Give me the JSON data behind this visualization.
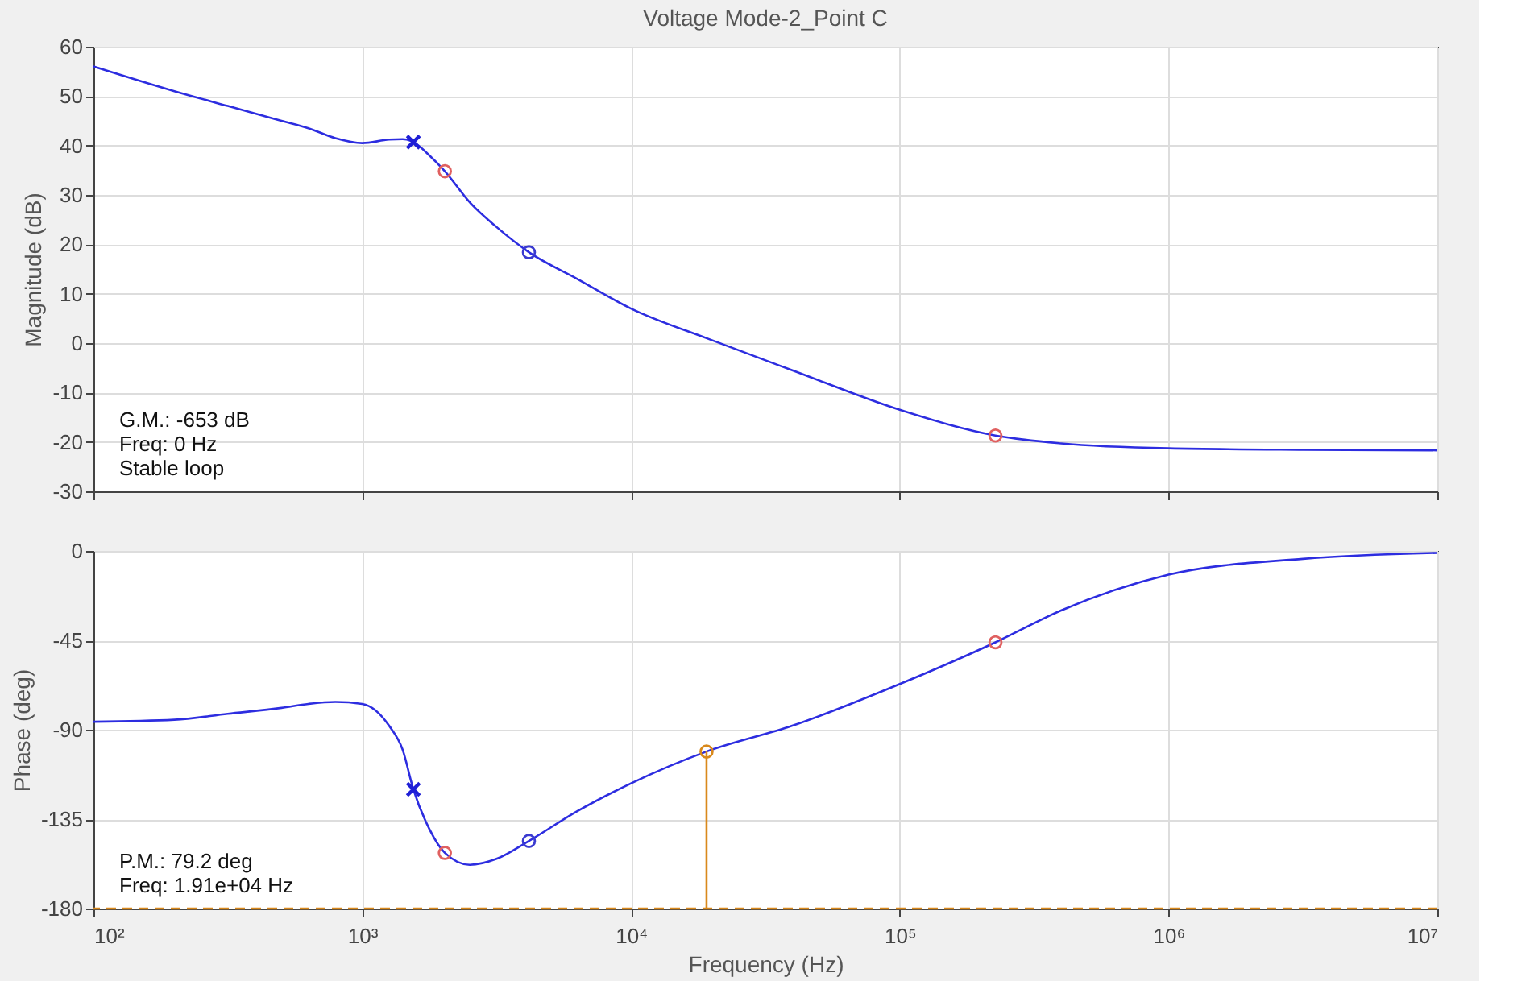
{
  "chart_data": [
    {
      "type": "line",
      "title": "Voltage Mode-2_Point C",
      "ylabel": "Magnitude (dB)",
      "xlim": [
        100,
        10000000
      ],
      "ylim": [
        -30,
        60
      ],
      "yticks": [
        -30,
        -20,
        -10,
        0,
        10,
        20,
        30,
        40,
        50,
        60
      ],
      "xticks": [
        100,
        1000,
        10000,
        100000,
        1000000,
        10000000
      ],
      "log": "x",
      "grid": true,
      "tick_labels": "y",
      "series": [
        {
          "type": "line",
          "color": "#2d2de0",
          "marker": "none",
          "x": [
            100,
            200,
            316,
            501,
            631,
            794,
            1000,
            1259,
            1413,
            1550,
            1778,
            2030,
            2512,
            3162,
            4170,
            6310,
            10000,
            19100,
            39810,
            100000,
            227000,
            398100,
            1000000,
            3162000,
            10000000
          ],
          "values": [
            56,
            51,
            48,
            45,
            43.5,
            41.5,
            40.5,
            41.2,
            41.3,
            40.7,
            38,
            34.8,
            28.5,
            23.5,
            18.4,
            13,
            7,
            1,
            -5.5,
            -13.5,
            -18.7,
            -20.3,
            -21.3,
            -21.6,
            -21.7
          ]
        },
        {
          "type": "scatter",
          "color": "#1f1fd6",
          "marker": "cross",
          "x": [
            1550
          ],
          "values": [
            40.7
          ]
        },
        {
          "type": "scatter",
          "color": "#e06060",
          "marker": "circle",
          "x": [
            2030,
            227000
          ],
          "values": [
            34.8,
            -18.7
          ]
        },
        {
          "type": "scatter",
          "color": "#3b3bd0",
          "marker": "circle",
          "x": [
            4170
          ],
          "values": [
            18.4
          ]
        }
      ],
      "annotations": [
        "G.M.: -653 dB",
        "Freq: 0 Hz",
        "Stable loop"
      ]
    },
    {
      "type": "line",
      "ylabel": "Phase (deg)",
      "xlabel": "Frequency (Hz)",
      "xlim": [
        100,
        10000000
      ],
      "ylim": [
        -180,
        0
      ],
      "yticks": [
        -180,
        -135,
        -90,
        -45,
        0
      ],
      "xticks": [
        {
          "value": 100,
          "label": "10²"
        },
        {
          "value": 1000,
          "label": "10³"
        },
        {
          "value": 10000,
          "label": "10⁴"
        },
        {
          "value": 100000,
          "label": "10⁵"
        },
        {
          "value": 1000000,
          "label": "10⁶"
        },
        {
          "value": 10000000,
          "label": "10⁷"
        }
      ],
      "log": "x",
      "grid": true,
      "series": [
        {
          "type": "line",
          "color": "#2d2de0",
          "marker": "none",
          "x": [
            100,
            200,
            316,
            501,
            631,
            794,
            1000,
            1259,
            1413,
            1550,
            1778,
            2030,
            2512,
            3162,
            4170,
            6310,
            10000,
            19100,
            39810,
            100000,
            227000,
            398100,
            1000000,
            3162000,
            10000000
          ],
          "values": [
            -86,
            -85,
            -82,
            -79,
            -77,
            -76,
            -77,
            -88,
            -100,
            -120,
            -140,
            -152,
            -158,
            -155,
            -146,
            -131,
            -117,
            -101,
            -88,
            -67,
            -46,
            -30,
            -12,
            -4,
            -1
          ]
        },
        {
          "type": "line",
          "color": "#d9891c",
          "marker": "none",
          "x": [
            19100,
            19100
          ],
          "values": [
            -180,
            -101
          ]
        },
        {
          "type": "scatter",
          "color": "#d9891c",
          "marker": "circle",
          "x": [
            19100
          ],
          "values": [
            -101
          ]
        },
        {
          "type": "scatter",
          "color": "#1f1fd6",
          "marker": "cross",
          "x": [
            1550
          ],
          "values": [
            -120
          ]
        },
        {
          "type": "scatter",
          "color": "#e06060",
          "marker": "circle",
          "x": [
            2030,
            227000
          ],
          "values": [
            -152,
            -46
          ]
        },
        {
          "type": "scatter",
          "color": "#3b3bd0",
          "marker": "circle",
          "x": [
            4170
          ],
          "values": [
            -146
          ]
        }
      ],
      "ref_lines": [
        {
          "axis": "y",
          "value": -180,
          "color": "#d9891c",
          "line_style": "dashed"
        }
      ],
      "annotations": [
        "P.M.: 79.2 deg",
        "Freq: 1.91e+04 Hz"
      ]
    }
  ]
}
